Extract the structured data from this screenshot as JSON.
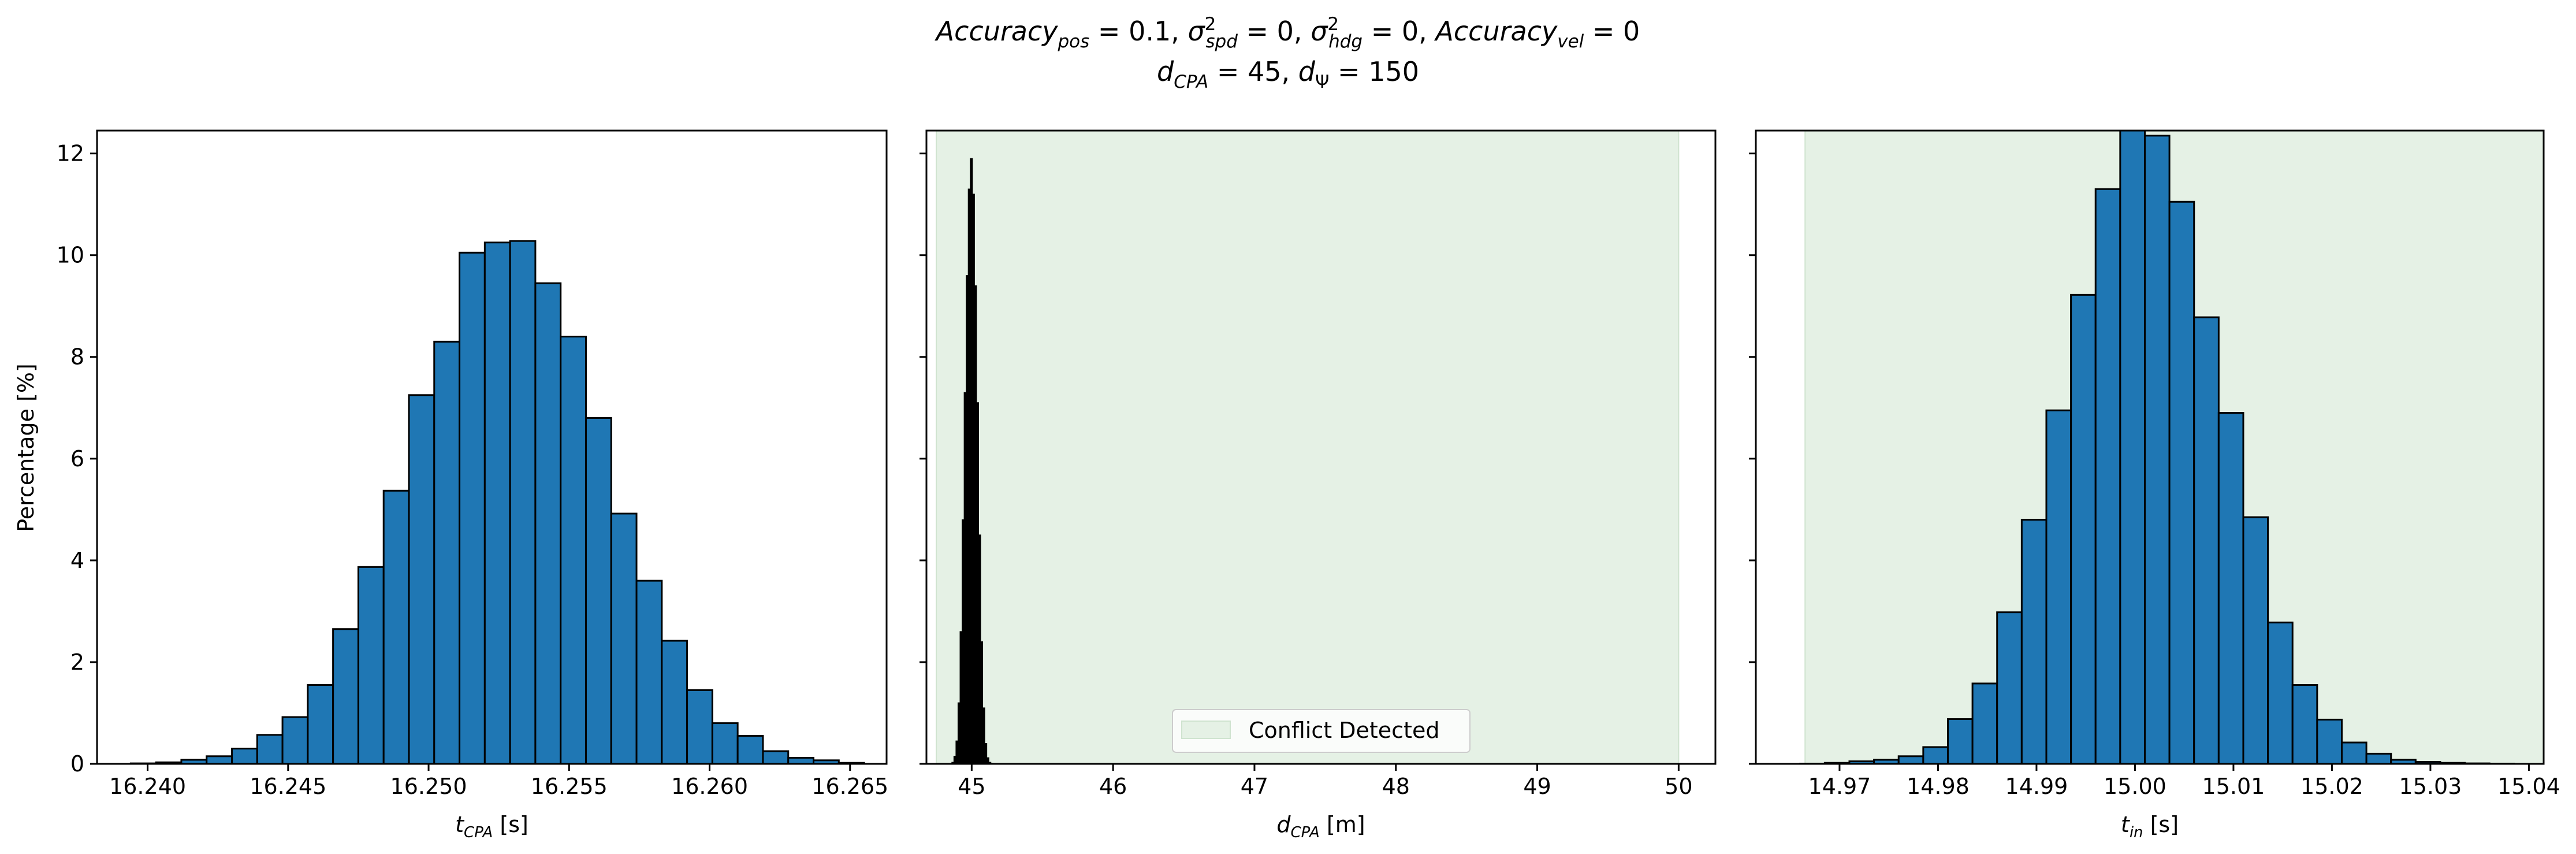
{
  "figure": {
    "title_line1": {
      "a": "Accuracy",
      "a_sub": "pos",
      "a_val": " = 0.1, ",
      "b": "σ",
      "b_sup": "2",
      "b_sub": "spd",
      "b_val": " = 0, ",
      "c": "σ",
      "c_sup": "2",
      "c_sub": "hdg",
      "c_val": " = 0, ",
      "d": "Accuracy",
      "d_sub": "vel",
      "d_val": " = 0"
    },
    "title_line2": {
      "a": "d",
      "a_sub": "CPA",
      "a_val": " = 45, ",
      "b": "d",
      "b_sub": "Ψ",
      "b_val": " = 150"
    },
    "ylabel": "Percentage [%]"
  },
  "colors": {
    "bar_fill": "#1f77b4",
    "bar_edge": "#000000",
    "conflict_region": "#e5f1e5",
    "conflict_region_edge": "#cfe3cf",
    "axis": "#000000"
  },
  "chart_data": [
    {
      "type": "bar",
      "panel": "tcpa",
      "xlabel": {
        "main": "t",
        "sub": "CPA",
        "unit": " [s]"
      },
      "xlim": [
        16.2382,
        16.2663
      ],
      "ylim": [
        0,
        12.45
      ],
      "xticks": [
        16.24,
        16.245,
        16.25,
        16.255,
        16.26,
        16.265
      ],
      "xtick_labels": [
        "16.240",
        "16.245",
        "16.250",
        "16.255",
        "16.260",
        "16.265"
      ],
      "yticks": [
        0,
        2,
        4,
        6,
        8,
        10,
        12
      ],
      "ytick_labels": [
        "0",
        "2",
        "4",
        "6",
        "8",
        "10",
        "12"
      ],
      "grid": false,
      "bin_edges": [
        16.2394,
        16.2403,
        16.2412,
        16.2421,
        16.243,
        16.2439,
        16.2448,
        16.2457,
        16.2466,
        16.2475,
        16.2484,
        16.2493,
        16.2502,
        16.2511,
        16.252,
        16.2529,
        16.2538,
        16.2547,
        16.2556,
        16.2565,
        16.2574,
        16.2583,
        16.2592,
        16.2601,
        16.261,
        16.2619,
        16.2628,
        16.2637,
        16.2646,
        16.2655
      ],
      "values": [
        0.01,
        0.03,
        0.08,
        0.15,
        0.3,
        0.57,
        0.92,
        1.55,
        2.65,
        3.87,
        5.37,
        7.25,
        8.3,
        10.05,
        10.25,
        10.28,
        9.45,
        8.4,
        6.8,
        4.92,
        3.6,
        2.42,
        1.45,
        0.8,
        0.55,
        0.25,
        0.12,
        0.07,
        0.02
      ]
    },
    {
      "type": "bar",
      "panel": "dcpa",
      "xlabel": {
        "main": "d",
        "sub": "CPA",
        "unit": " [m]"
      },
      "xlim": [
        44.68,
        50.26
      ],
      "ylim": [
        0,
        12.45
      ],
      "xticks": [
        45,
        46,
        47,
        48,
        49,
        50
      ],
      "xtick_labels": [
        "45",
        "46",
        "47",
        "48",
        "49",
        "50"
      ],
      "yticks": [
        0,
        2,
        4,
        6,
        8,
        10,
        12
      ],
      "grid": false,
      "bin_edges": [
        44.86,
        44.8745,
        44.889,
        44.9035,
        44.918,
        44.9325,
        44.947,
        44.9615,
        44.976,
        44.9905,
        45.005,
        45.0195,
        45.034,
        45.0485,
        45.063,
        45.0775,
        45.092,
        45.1065,
        45.121,
        45.1355,
        45.15
      ],
      "values": [
        0.03,
        0.15,
        0.45,
        1.2,
        2.6,
        4.8,
        7.3,
        9.6,
        11.3,
        11.9,
        11.2,
        9.4,
        7.1,
        4.5,
        2.4,
        1.1,
        0.4,
        0.12,
        0.03,
        0.01
      ],
      "shaded_region": {
        "x0": 44.75,
        "x1": 50.0
      },
      "legend": {
        "label": "Conflict Detected",
        "placement": "lower center"
      }
    },
    {
      "type": "bar",
      "panel": "tin",
      "xlabel": {
        "main": "t",
        "sub": "in",
        "unit": " [s]"
      },
      "xlim": [
        14.9615,
        15.0415
      ],
      "ylim": [
        0,
        12.45
      ],
      "xticks": [
        14.97,
        14.98,
        14.99,
        15.0,
        15.01,
        15.02,
        15.03,
        15.04
      ],
      "xtick_labels": [
        "14.97",
        "14.98",
        "14.99",
        "15.00",
        "15.01",
        "15.02",
        "15.03",
        "15.04"
      ],
      "yticks": [
        0,
        2,
        4,
        6,
        8,
        10,
        12
      ],
      "grid": false,
      "bin_edges": [
        14.966,
        14.9685,
        14.971,
        14.9735,
        14.976,
        14.9785,
        14.981,
        14.9835,
        14.986,
        14.9885,
        14.991,
        14.9935,
        14.996,
        14.9985,
        15.001,
        15.0035,
        15.006,
        15.0085,
        15.011,
        15.0135,
        15.016,
        15.0185,
        15.021,
        15.0235,
        15.026,
        15.0285,
        15.031,
        15.0335,
        15.036,
        15.0385
      ],
      "values": [
        0.005,
        0.02,
        0.05,
        0.08,
        0.15,
        0.33,
        0.88,
        1.58,
        2.98,
        4.8,
        6.95,
        9.22,
        11.3,
        12.45,
        12.35,
        11.05,
        8.78,
        6.9,
        4.85,
        2.78,
        1.55,
        0.87,
        0.42,
        0.2,
        0.08,
        0.04,
        0.02,
        0.01,
        0.005
      ],
      "shaded_region": {
        "x0": 14.9665,
        "x1": 15.0415
      }
    }
  ]
}
